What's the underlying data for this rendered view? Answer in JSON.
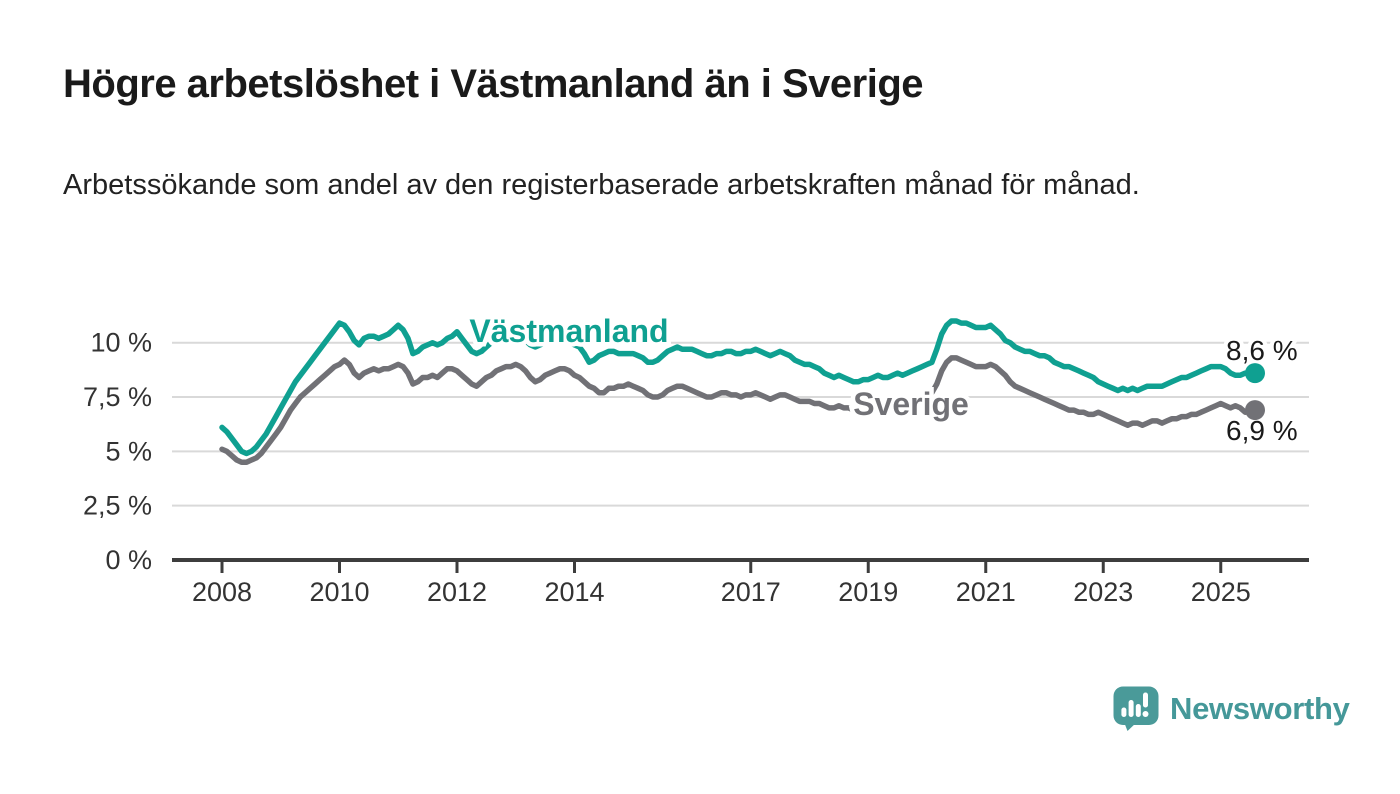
{
  "header": {
    "title": "Högre arbetslöshet i Västmanland än i Sverige",
    "subtitle": "Arbetssökande som andel av den registerbaserade arbetskraften månad för månad."
  },
  "chart_data": {
    "type": "line",
    "title": "",
    "xlabel": "",
    "ylabel": "",
    "x_start": "2008-01",
    "x_end": "2025-08",
    "x_frequency": "monthly",
    "x_tick_years": [
      2008,
      2010,
      2012,
      2014,
      2017,
      2019,
      2021,
      2023,
      2025
    ],
    "x_tick_labels": [
      "2008",
      "2010",
      "2012",
      "2014",
      "2017",
      "2019",
      "2021",
      "2023",
      "2025"
    ],
    "y_ticks": [
      {
        "value": 0,
        "label": "0 %"
      },
      {
        "value": 2.5,
        "label": "2,5 %"
      },
      {
        "value": 5,
        "label": "5 %"
      },
      {
        "value": 7.5,
        "label": "7,5 %"
      },
      {
        "value": 10,
        "label": "10 %"
      }
    ],
    "ylim": [
      0,
      11.6
    ],
    "grid": "horizontal",
    "legend_position": "inline-labels",
    "colors": {
      "grid": "#D9D9D9",
      "axis": "#3D3D3D",
      "tick_text": "#333333",
      "value_label_text": "#1a1a1a"
    },
    "series": [
      {
        "name": "Västmanland",
        "color": "#0FA091",
        "end_label": "8,6 %",
        "end_value": 8.6,
        "values": [
          6.1,
          5.9,
          5.6,
          5.3,
          5.0,
          4.9,
          5.0,
          5.2,
          5.5,
          5.8,
          6.2,
          6.6,
          7.0,
          7.4,
          7.8,
          8.2,
          8.5,
          8.8,
          9.1,
          9.4,
          9.7,
          10.0,
          10.3,
          10.6,
          10.9,
          10.8,
          10.5,
          10.1,
          9.9,
          10.2,
          10.3,
          10.3,
          10.2,
          10.3,
          10.4,
          10.6,
          10.8,
          10.6,
          10.2,
          9.5,
          9.6,
          9.8,
          9.9,
          10.0,
          9.9,
          10.0,
          10.2,
          10.3,
          10.5,
          10.2,
          9.9,
          9.6,
          9.5,
          9.6,
          9.8,
          10.0,
          10.1,
          10.2,
          10.3,
          10.4,
          10.4,
          10.3,
          10.1,
          9.9,
          9.8,
          9.9,
          10.0,
          10.1,
          10.1,
          10.2,
          10.1,
          10.0,
          9.9,
          9.8,
          9.5,
          9.1,
          9.2,
          9.4,
          9.5,
          9.6,
          9.6,
          9.5,
          9.5,
          9.5,
          9.5,
          9.4,
          9.3,
          9.1,
          9.1,
          9.2,
          9.4,
          9.6,
          9.7,
          9.8,
          9.7,
          9.7,
          9.7,
          9.6,
          9.5,
          9.4,
          9.4,
          9.5,
          9.5,
          9.6,
          9.6,
          9.5,
          9.5,
          9.6,
          9.6,
          9.7,
          9.6,
          9.5,
          9.4,
          9.5,
          9.6,
          9.5,
          9.4,
          9.2,
          9.1,
          9.0,
          9.0,
          8.9,
          8.8,
          8.6,
          8.5,
          8.4,
          8.5,
          8.4,
          8.3,
          8.2,
          8.2,
          8.3,
          8.3,
          8.4,
          8.5,
          8.4,
          8.4,
          8.5,
          8.6,
          8.5,
          8.6,
          8.7,
          8.8,
          8.9,
          9.0,
          9.1,
          9.7,
          10.4,
          10.8,
          11.0,
          11.0,
          10.9,
          10.9,
          10.8,
          10.7,
          10.7,
          10.7,
          10.8,
          10.6,
          10.4,
          10.1,
          10.0,
          9.8,
          9.7,
          9.6,
          9.6,
          9.5,
          9.4,
          9.4,
          9.3,
          9.1,
          9.0,
          8.9,
          8.9,
          8.8,
          8.7,
          8.6,
          8.5,
          8.4,
          8.2,
          8.1,
          8.0,
          7.9,
          7.8,
          7.9,
          7.8,
          7.9,
          7.8,
          7.9,
          8.0,
          8.0,
          8.0,
          8.0,
          8.1,
          8.2,
          8.3,
          8.4,
          8.4,
          8.5,
          8.6,
          8.7,
          8.8,
          8.9,
          8.9,
          8.9,
          8.8,
          8.6,
          8.5,
          8.5,
          8.6,
          8.6,
          8.6
        ]
      },
      {
        "name": "Sverige",
        "color": "#717176",
        "end_label": "6,9 %",
        "end_value": 6.9,
        "values": [
          5.1,
          5.0,
          4.8,
          4.6,
          4.5,
          4.5,
          4.6,
          4.7,
          4.9,
          5.2,
          5.5,
          5.8,
          6.1,
          6.5,
          6.9,
          7.2,
          7.5,
          7.7,
          7.9,
          8.1,
          8.3,
          8.5,
          8.7,
          8.9,
          9.0,
          9.2,
          9.0,
          8.6,
          8.4,
          8.6,
          8.7,
          8.8,
          8.7,
          8.8,
          8.8,
          8.9,
          9.0,
          8.9,
          8.6,
          8.1,
          8.2,
          8.4,
          8.4,
          8.5,
          8.4,
          8.6,
          8.8,
          8.8,
          8.7,
          8.5,
          8.3,
          8.1,
          8.0,
          8.2,
          8.4,
          8.5,
          8.7,
          8.8,
          8.9,
          8.9,
          9.0,
          8.9,
          8.7,
          8.4,
          8.2,
          8.3,
          8.5,
          8.6,
          8.7,
          8.8,
          8.8,
          8.7,
          8.5,
          8.4,
          8.2,
          8.0,
          7.9,
          7.7,
          7.7,
          7.9,
          7.9,
          8.0,
          8.0,
          8.1,
          8.0,
          7.9,
          7.8,
          7.6,
          7.5,
          7.5,
          7.6,
          7.8,
          7.9,
          8.0,
          8.0,
          7.9,
          7.8,
          7.7,
          7.6,
          7.5,
          7.5,
          7.6,
          7.7,
          7.7,
          7.6,
          7.6,
          7.5,
          7.6,
          7.6,
          7.7,
          7.6,
          7.5,
          7.4,
          7.5,
          7.6,
          7.6,
          7.5,
          7.4,
          7.3,
          7.3,
          7.3,
          7.2,
          7.2,
          7.1,
          7.0,
          7.0,
          7.1,
          7.0,
          7.0,
          6.9,
          6.9,
          7.0,
          7.0,
          7.0,
          7.1,
          7.1,
          7.2,
          7.2,
          7.3,
          7.3,
          7.2,
          7.3,
          7.4,
          7.5,
          7.6,
          7.7,
          8.1,
          8.7,
          9.1,
          9.3,
          9.3,
          9.2,
          9.1,
          9.0,
          8.9,
          8.9,
          8.9,
          9.0,
          8.9,
          8.7,
          8.5,
          8.2,
          8.0,
          7.9,
          7.8,
          7.7,
          7.6,
          7.5,
          7.4,
          7.3,
          7.2,
          7.1,
          7.0,
          6.9,
          6.9,
          6.8,
          6.8,
          6.7,
          6.7,
          6.8,
          6.7,
          6.6,
          6.5,
          6.4,
          6.3,
          6.2,
          6.3,
          6.3,
          6.2,
          6.3,
          6.4,
          6.4,
          6.3,
          6.4,
          6.5,
          6.5,
          6.6,
          6.6,
          6.7,
          6.7,
          6.8,
          6.9,
          7.0,
          7.1,
          7.2,
          7.1,
          7.0,
          7.1,
          7.0,
          6.8,
          6.9,
          6.9
        ]
      }
    ]
  },
  "footer": {
    "brand": "Newsworthy",
    "logo_icon": "bar-chart-speech-bubble-icon",
    "brand_color": "#459899",
    "logo_fill": "#4A9A99"
  }
}
